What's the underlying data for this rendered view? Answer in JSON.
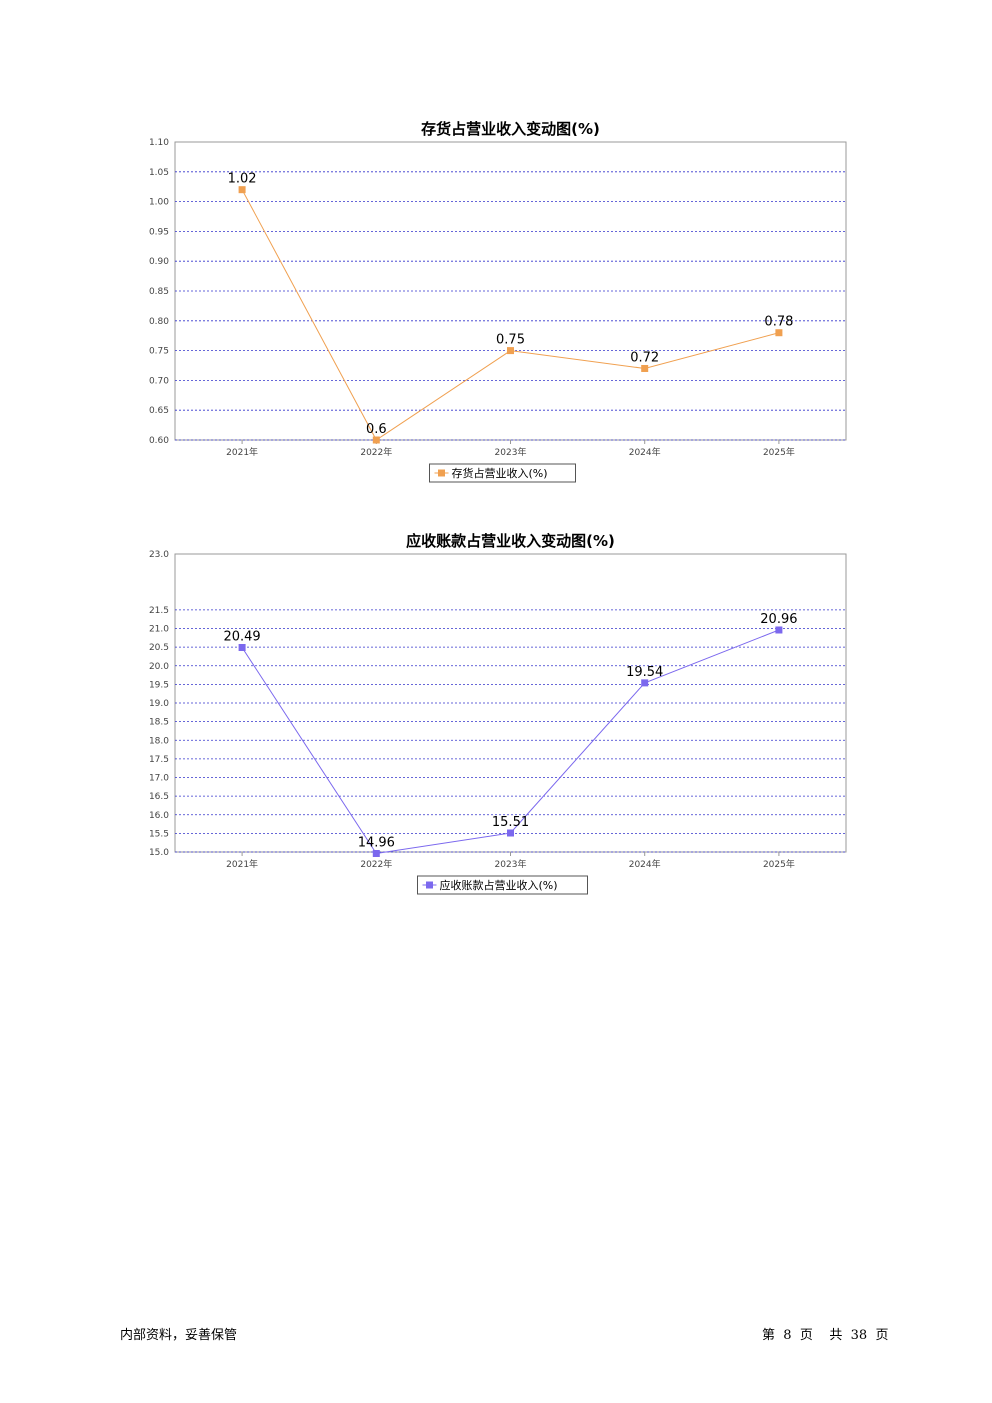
{
  "charts": [
    {
      "type": "line",
      "title": "存货占营业收入变动图(%)",
      "categories": [
        "2021年",
        "2022年",
        "2023年",
        "2024年",
        "2025年"
      ],
      "series": [
        {
          "name": "存货占营业收入(%)",
          "values": [
            1.02,
            0.6,
            0.75,
            0.72,
            0.78
          ],
          "labels": [
            "1.02",
            "0.6",
            "0.75",
            "0.72",
            "0.78"
          ],
          "color": "#f0a050"
        }
      ],
      "ylim": [
        0.6,
        1.1
      ],
      "yticks": [
        "0.60",
        "0.65",
        "0.70",
        "0.75",
        "0.80",
        "0.85",
        "0.90",
        "0.95",
        "1.00",
        "1.05",
        "1.10"
      ],
      "grid": true,
      "legend": "bottom"
    },
    {
      "type": "line",
      "title": "应收账款占营业收入变动图(%)",
      "categories": [
        "2021年",
        "2022年",
        "2023年",
        "2024年",
        "2025年"
      ],
      "series": [
        {
          "name": "应收账款占营业收入(%)",
          "values": [
            20.49,
            14.96,
            15.51,
            19.54,
            20.96
          ],
          "labels": [
            "20.49",
            "14.96",
            "15.51",
            "19.54",
            "20.96"
          ],
          "color": "#7b68ee"
        }
      ],
      "ylim": [
        15.0,
        23.0
      ],
      "yticks": [
        "15.0",
        "15.5",
        "16.0",
        "16.5",
        "17.0",
        "17.5",
        "18.0",
        "18.5",
        "19.0",
        "19.5",
        "20.0",
        "20.5",
        "21.0",
        "21.5",
        "23.0"
      ],
      "grid": true,
      "legend": "bottom"
    }
  ],
  "footer": {
    "left": "内部资料，妥善保管",
    "page_prefix": "第",
    "page": "8",
    "page_unit": "页",
    "total_prefix": "共",
    "total": "38",
    "total_unit": "页"
  }
}
